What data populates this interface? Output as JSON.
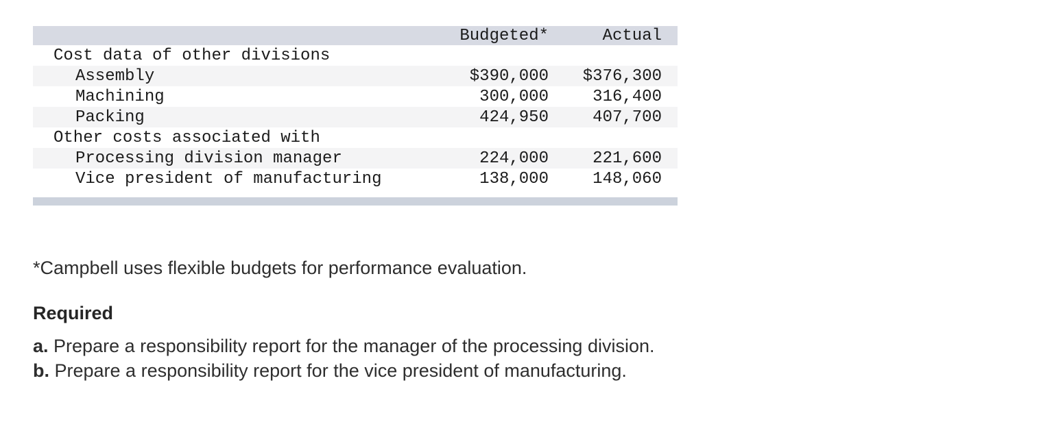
{
  "table": {
    "headers": {
      "budgeted": "Budgeted*",
      "actual": "Actual"
    },
    "rows": [
      {
        "label": "Cost data of other divisions",
        "indent": 1,
        "budgeted": "",
        "actual": "",
        "shaded": false
      },
      {
        "label": "Assembly",
        "indent": 2,
        "budgeted": "$390,000",
        "actual": "$376,300",
        "shaded": true
      },
      {
        "label": "Machining",
        "indent": 2,
        "budgeted": "300,000",
        "actual": "316,400",
        "shaded": false
      },
      {
        "label": "Packing",
        "indent": 2,
        "budgeted": "424,950",
        "actual": "407,700",
        "shaded": true
      },
      {
        "label": "Other costs associated with",
        "indent": 1,
        "budgeted": "",
        "actual": "",
        "shaded": false
      },
      {
        "label": "Processing division manager",
        "indent": 2,
        "budgeted": "224,000",
        "actual": "221,600",
        "shaded": true
      },
      {
        "label": "Vice president of manufacturing",
        "indent": 2,
        "budgeted": "138,000",
        "actual": "148,060",
        "shaded": false
      }
    ],
    "colors": {
      "header_band": "#d7dae3",
      "footer_band": "#ccd2dc",
      "shaded_row": "#f4f4f5"
    }
  },
  "footnote": "*Campbell uses flexible budgets for performance evaluation.",
  "required": {
    "heading": "Required",
    "items": [
      {
        "marker": "a.",
        "text": " Prepare a responsibility report for the manager of the processing division."
      },
      {
        "marker": "b.",
        "text": " Prepare a responsibility report for the vice president of manufacturing."
      }
    ]
  }
}
